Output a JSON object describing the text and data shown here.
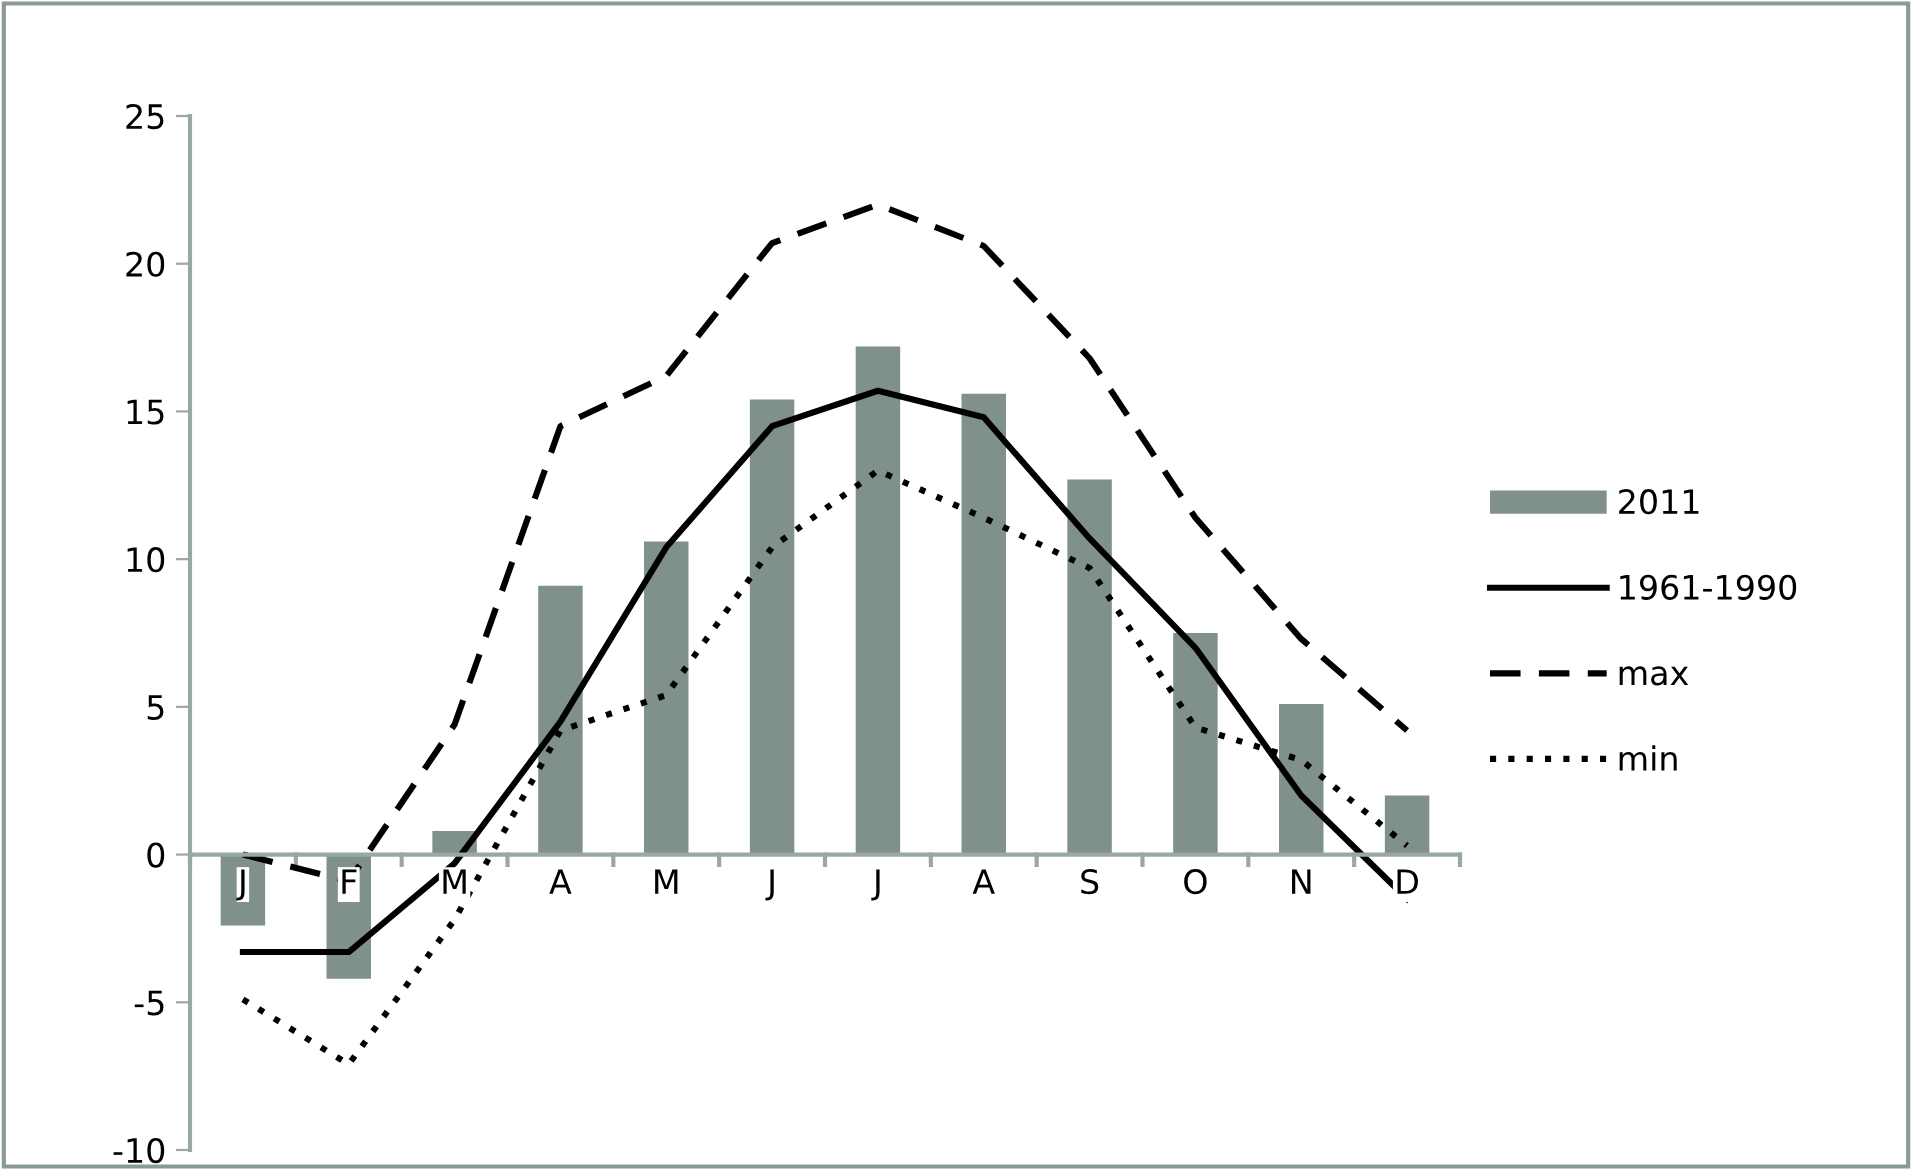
{
  "chart_data": {
    "type": "bar",
    "categories": [
      "J",
      "F",
      "M",
      "A",
      "M",
      "J",
      "J",
      "A",
      "S",
      "O",
      "N",
      "D"
    ],
    "series": [
      {
        "name": "2011",
        "color": "#7f908d",
        "values": [
          -2.4,
          -4.2,
          0.8,
          9.1,
          10.6,
          15.4,
          17.2,
          15.6,
          12.7,
          7.5,
          5.1,
          2.0
        ]
      },
      {
        "name": "1961-1990",
        "type": "line",
        "color": "#000000",
        "line_style": "solid",
        "values": [
          -3.3,
          -3.3,
          -0.3,
          4.5,
          10.4,
          14.5,
          15.7,
          14.8,
          10.7,
          7.0,
          2.0,
          -1.5
        ]
      },
      {
        "name": "max",
        "type": "line",
        "color": "#000000",
        "line_style": "dashed",
        "values": [
          0.0,
          -0.9,
          4.4,
          14.5,
          16.2,
          20.7,
          22.0,
          20.6,
          16.8,
          11.4,
          7.3,
          4.2
        ]
      },
      {
        "name": "min",
        "type": "line",
        "color": "#000000",
        "line_style": "dotted",
        "values": [
          -4.9,
          -7.1,
          -2.2,
          4.2,
          5.4,
          10.4,
          13.0,
          11.4,
          9.7,
          4.3,
          3.2,
          0.3
        ]
      }
    ],
    "ylim": [
      -10,
      25
    ],
    "yticks": [
      -10,
      -5,
      0,
      5,
      10,
      15,
      20,
      25
    ],
    "grid": false,
    "legend": "right",
    "marker": "none"
  }
}
